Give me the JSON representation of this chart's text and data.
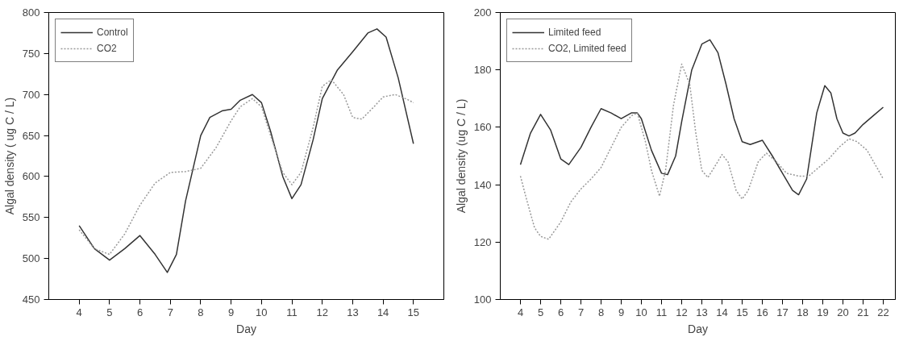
{
  "chart_data": [
    {
      "type": "line",
      "xlabel": "Day",
      "ylabel": "Algal density ( ug C / L)",
      "xlim": [
        3,
        16
      ],
      "ylim": [
        450,
        800
      ],
      "xticks": [
        4,
        5,
        6,
        7,
        8,
        9,
        10,
        11,
        12,
        13,
        14,
        15
      ],
      "yticks": [
        450,
        500,
        550,
        600,
        650,
        700,
        750,
        800
      ],
      "grid": false,
      "legend": "top left",
      "marker": "none",
      "series": [
        {
          "name": "Control",
          "color": "#333333",
          "line_style": "solid",
          "x": [
            4,
            4.5,
            5,
            5.5,
            6,
            6.5,
            6.9,
            7.2,
            7.5,
            8,
            8.3,
            8.7,
            9,
            9.3,
            9.7,
            10,
            10.3,
            10.7,
            11,
            11.3,
            11.7,
            12,
            12.5,
            13,
            13.5,
            13.8,
            14.1,
            14.5,
            15
          ],
          "values": [
            540,
            512,
            498,
            512,
            528,
            505,
            483,
            505,
            570,
            650,
            672,
            680,
            682,
            693,
            700,
            690,
            655,
            600,
            573,
            590,
            645,
            695,
            730,
            752,
            775,
            780,
            770,
            720,
            640
          ]
        },
        {
          "name": "CO2",
          "color": "#999999",
          "line_style": "dotted",
          "x": [
            4,
            4.5,
            5,
            5.5,
            6,
            6.5,
            7,
            7.5,
            8,
            8.5,
            9,
            9.3,
            9.7,
            10,
            10.3,
            10.7,
            11,
            11.3,
            11.7,
            12,
            12.3,
            12.7,
            13,
            13.3,
            13.7,
            14,
            14.4,
            14.8,
            15
          ],
          "values": [
            535,
            512,
            505,
            530,
            565,
            592,
            605,
            606,
            610,
            635,
            668,
            685,
            695,
            685,
            650,
            605,
            590,
            605,
            660,
            710,
            718,
            700,
            672,
            670,
            685,
            697,
            700,
            694,
            690
          ]
        }
      ]
    },
    {
      "type": "line",
      "xlabel": "Day",
      "ylabel": "Algal density (ug C / L)",
      "xlim": [
        3,
        22.6
      ],
      "ylim": [
        100,
        200
      ],
      "xticks": [
        4,
        5,
        6,
        7,
        8,
        9,
        10,
        11,
        12,
        13,
        14,
        15,
        16,
        17,
        18,
        19,
        20,
        21,
        22
      ],
      "yticks": [
        100,
        120,
        140,
        160,
        180,
        200
      ],
      "grid": false,
      "legend": "top left",
      "marker": "none",
      "series": [
        {
          "name": "Limited feed",
          "color": "#333333",
          "line_style": "solid",
          "x": [
            4,
            4.5,
            5,
            5.5,
            6,
            6.4,
            7,
            7.5,
            8,
            8.5,
            9,
            9.5,
            9.8,
            10,
            10.5,
            11,
            11.3,
            11.7,
            12,
            12.5,
            13,
            13.4,
            13.8,
            14.2,
            14.6,
            15,
            15.4,
            16,
            16.5,
            17,
            17.5,
            17.8,
            18.2,
            18.7,
            19.1,
            19.4,
            19.7,
            20,
            20.3,
            20.6,
            21,
            21.5,
            22
          ],
          "values": [
            147,
            158,
            164.5,
            159,
            149,
            147,
            153,
            160,
            166.5,
            165,
            163,
            165,
            165,
            163,
            152,
            144,
            143.5,
            150,
            162,
            180,
            189,
            190.5,
            186,
            175,
            163,
            155,
            154,
            155.5,
            150,
            144,
            138,
            136.5,
            142,
            165,
            174.5,
            172,
            163,
            158,
            157,
            158,
            161,
            164,
            167
          ]
        },
        {
          "name": "CO2, Limited feed",
          "color": "#999999",
          "line_style": "dotted",
          "x": [
            4,
            4.3,
            4.7,
            5,
            5.4,
            6,
            6.5,
            7,
            7.5,
            8,
            8.5,
            9,
            9.5,
            9.8,
            10.2,
            10.5,
            10.9,
            11.2,
            11.6,
            12,
            12.4,
            12.7,
            13,
            13.3,
            13.7,
            14,
            14.3,
            14.7,
            15,
            15.3,
            15.8,
            16.2,
            16.7,
            17.2,
            17.8,
            18.3,
            18.8,
            19.3,
            19.8,
            20.3,
            20.7,
            21.2,
            21.6,
            22
          ],
          "values": [
            143,
            135,
            125,
            122,
            121,
            127,
            134,
            138.5,
            142,
            146,
            153,
            160,
            164,
            165,
            155,
            145,
            136,
            145,
            168,
            182,
            175,
            158,
            145,
            142.5,
            147,
            150.5,
            148,
            138,
            135,
            138,
            148,
            151,
            148,
            144,
            143,
            143,
            146,
            149,
            153,
            156,
            155,
            152,
            147,
            142
          ]
        }
      ]
    }
  ]
}
